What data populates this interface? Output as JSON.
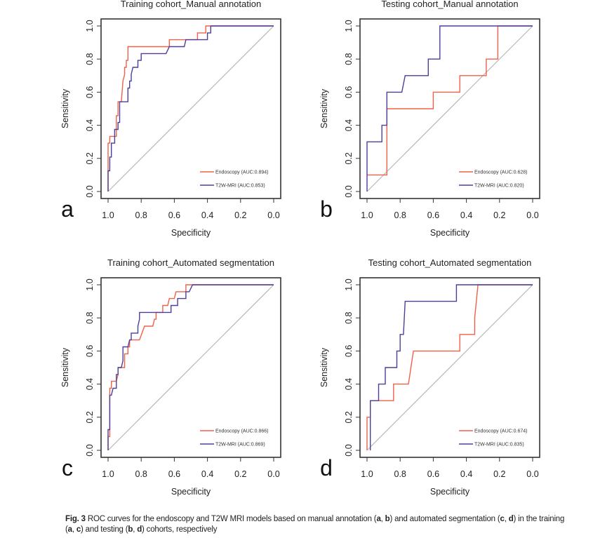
{
  "figure": {
    "caption_label": "Fig. 3",
    "caption_parts": [
      {
        "text": " ROC curves for the endoscopy and T2W MRI models based on manual annotation (",
        "bold": false
      },
      {
        "text": "a",
        "bold": true
      },
      {
        "text": ", ",
        "bold": false
      },
      {
        "text": "b",
        "bold": true
      },
      {
        "text": ") and automated segmentation (",
        "bold": false
      },
      {
        "text": "c",
        "bold": true
      },
      {
        "text": ", ",
        "bold": false
      },
      {
        "text": "d",
        "bold": true
      },
      {
        "text": ") in the training (",
        "bold": false
      },
      {
        "text": "a",
        "bold": true
      },
      {
        "text": ", ",
        "bold": false
      },
      {
        "text": "c",
        "bold": true
      },
      {
        "text": ") and testing (",
        "bold": false
      },
      {
        "text": "b",
        "bold": true
      },
      {
        "text": ", ",
        "bold": false
      },
      {
        "text": "d",
        "bold": true
      },
      {
        "text": ") cohorts, respectively",
        "bold": false
      }
    ]
  },
  "colors": {
    "endoscopy": "#f0614a",
    "t2w_mri": "#4b3f9a",
    "diagonal": "#b8b8b8",
    "frame": "#333333"
  },
  "chart_data": [
    {
      "panel_letter": "a",
      "type": "line",
      "title": "Training cohort_Manual annotation",
      "xlabel": "Specificity",
      "ylabel": "Sensitivity",
      "xlim": [
        1.0,
        0.0
      ],
      "ylim": [
        0.0,
        1.0
      ],
      "x_ticks": [
        "1.0",
        "0.8",
        "0.6",
        "0.4",
        "0.2",
        "0.0"
      ],
      "y_ticks": [
        "0.0",
        "0.2",
        "0.4",
        "0.6",
        "0.8",
        "1.0"
      ],
      "legend_position": "bottom-right",
      "grid": false,
      "series": [
        {
          "name": "Endoscopy (AUC:0.894)",
          "color_key": "endoscopy",
          "points": [
            [
              1.0,
              0.0
            ],
            [
              1.0,
              0.125
            ],
            [
              1.0,
              0.292
            ],
            [
              0.99,
              0.292
            ],
            [
              0.99,
              0.333
            ],
            [
              0.95,
              0.333
            ],
            [
              0.95,
              0.458
            ],
            [
              0.94,
              0.458
            ],
            [
              0.94,
              0.542
            ],
            [
              0.92,
              0.542
            ],
            [
              0.91,
              0.667
            ],
            [
              0.9,
              0.708
            ],
            [
              0.9,
              0.75
            ],
            [
              0.89,
              0.75
            ],
            [
              0.89,
              0.792
            ],
            [
              0.88,
              0.792
            ],
            [
              0.88,
              0.875
            ],
            [
              0.63,
              0.875
            ],
            [
              0.63,
              0.917
            ],
            [
              0.46,
              0.917
            ],
            [
              0.46,
              0.958
            ],
            [
              0.41,
              0.958
            ],
            [
              0.41,
              1.0
            ],
            [
              0.0,
              1.0
            ]
          ]
        },
        {
          "name": "T2W-MRI (AUC:0.853)",
          "color_key": "t2w_mri",
          "points": [
            [
              1.0,
              0.0
            ],
            [
              1.0,
              0.125
            ],
            [
              0.99,
              0.125
            ],
            [
              0.99,
              0.208
            ],
            [
              0.98,
              0.208
            ],
            [
              0.98,
              0.292
            ],
            [
              0.96,
              0.292
            ],
            [
              0.96,
              0.375
            ],
            [
              0.94,
              0.375
            ],
            [
              0.94,
              0.417
            ],
            [
              0.93,
              0.417
            ],
            [
              0.93,
              0.542
            ],
            [
              0.88,
              0.542
            ],
            [
              0.88,
              0.625
            ],
            [
              0.87,
              0.625
            ],
            [
              0.87,
              0.667
            ],
            [
              0.86,
              0.667
            ],
            [
              0.86,
              0.708
            ],
            [
              0.85,
              0.75
            ],
            [
              0.82,
              0.75
            ],
            [
              0.82,
              0.792
            ],
            [
              0.8,
              0.792
            ],
            [
              0.8,
              0.833
            ],
            [
              0.65,
              0.833
            ],
            [
              0.63,
              0.875
            ],
            [
              0.54,
              0.875
            ],
            [
              0.53,
              0.917
            ],
            [
              0.4,
              0.917
            ],
            [
              0.4,
              0.958
            ],
            [
              0.38,
              0.958
            ],
            [
              0.38,
              1.0
            ],
            [
              0.0,
              1.0
            ]
          ]
        }
      ]
    },
    {
      "panel_letter": "b",
      "type": "line",
      "title": "Testing cohort_Manual annotation",
      "xlabel": "Specificity",
      "ylabel": "Sensitivity",
      "xlim": [
        1.0,
        0.0
      ],
      "ylim": [
        0.0,
        1.0
      ],
      "x_ticks": [
        "1.0",
        "0.8",
        "0.6",
        "0.4",
        "0.2",
        "0.0"
      ],
      "y_ticks": [
        "0.0",
        "0.2",
        "0.4",
        "0.6",
        "0.8",
        "1.0"
      ],
      "legend_position": "bottom-right",
      "grid": false,
      "series": [
        {
          "name": "Endoscopy (AUC:0.628)",
          "color_key": "endoscopy",
          "points": [
            [
              1.0,
              0.1
            ],
            [
              0.88,
              0.1
            ],
            [
              0.88,
              0.5
            ],
            [
              0.6,
              0.5
            ],
            [
              0.6,
              0.6
            ],
            [
              0.44,
              0.6
            ],
            [
              0.44,
              0.7
            ],
            [
              0.28,
              0.7
            ],
            [
              0.28,
              0.8
            ],
            [
              0.21,
              0.8
            ],
            [
              0.21,
              1.0
            ],
            [
              0.0,
              1.0
            ]
          ]
        },
        {
          "name": "T2W-MRI (AUC:0.820)",
          "color_key": "t2w_mri",
          "points": [
            [
              1.0,
              0.0
            ],
            [
              1.0,
              0.3
            ],
            [
              0.91,
              0.3
            ],
            [
              0.91,
              0.4
            ],
            [
              0.88,
              0.4
            ],
            [
              0.88,
              0.6
            ],
            [
              0.79,
              0.6
            ],
            [
              0.77,
              0.7
            ],
            [
              0.63,
              0.7
            ],
            [
              0.63,
              0.8
            ],
            [
              0.56,
              0.8
            ],
            [
              0.56,
              1.0
            ],
            [
              0.0,
              1.0
            ]
          ]
        }
      ]
    },
    {
      "panel_letter": "c",
      "type": "line",
      "title": "Training cohort_Automated segmentation",
      "xlabel": "Specificity",
      "ylabel": "Sensitivity",
      "xlim": [
        1.0,
        0.0
      ],
      "ylim": [
        0.0,
        1.0
      ],
      "x_ticks": [
        "1.0",
        "0.8",
        "0.6",
        "0.4",
        "0.2",
        "0.0"
      ],
      "y_ticks": [
        "0.0",
        "0.2",
        "0.4",
        "0.6",
        "0.8",
        "1.0"
      ],
      "legend_position": "bottom-right",
      "grid": false,
      "series": [
        {
          "name": "Endoscopy (AUC:0.866)",
          "color_key": "endoscopy",
          "points": [
            [
              1.0,
              0.0
            ],
            [
              1.0,
              0.083
            ],
            [
              0.99,
              0.083
            ],
            [
              0.99,
              0.375
            ],
            [
              0.98,
              0.375
            ],
            [
              0.98,
              0.417
            ],
            [
              0.95,
              0.417
            ],
            [
              0.94,
              0.458
            ],
            [
              0.94,
              0.5
            ],
            [
              0.9,
              0.5
            ],
            [
              0.9,
              0.583
            ],
            [
              0.88,
              0.583
            ],
            [
              0.88,
              0.625
            ],
            [
              0.87,
              0.625
            ],
            [
              0.87,
              0.667
            ],
            [
              0.81,
              0.667
            ],
            [
              0.78,
              0.75
            ],
            [
              0.73,
              0.75
            ],
            [
              0.72,
              0.792
            ],
            [
              0.71,
              0.792
            ],
            [
              0.71,
              0.833
            ],
            [
              0.67,
              0.833
            ],
            [
              0.67,
              0.875
            ],
            [
              0.64,
              0.875
            ],
            [
              0.63,
              0.917
            ],
            [
              0.6,
              0.917
            ],
            [
              0.59,
              0.958
            ],
            [
              0.53,
              0.958
            ],
            [
              0.53,
              1.0
            ],
            [
              0.0,
              1.0
            ]
          ]
        },
        {
          "name": "T2W-MRI (AUC:0.869)",
          "color_key": "t2w_mri",
          "points": [
            [
              1.0,
              0.0
            ],
            [
              1.0,
              0.125
            ],
            [
              0.99,
              0.125
            ],
            [
              0.99,
              0.333
            ],
            [
              0.98,
              0.333
            ],
            [
              0.97,
              0.375
            ],
            [
              0.95,
              0.375
            ],
            [
              0.95,
              0.458
            ],
            [
              0.94,
              0.458
            ],
            [
              0.94,
              0.5
            ],
            [
              0.92,
              0.5
            ],
            [
              0.91,
              0.542
            ],
            [
              0.91,
              0.625
            ],
            [
              0.88,
              0.625
            ],
            [
              0.87,
              0.667
            ],
            [
              0.86,
              0.667
            ],
            [
              0.86,
              0.708
            ],
            [
              0.82,
              0.708
            ],
            [
              0.82,
              0.75
            ],
            [
              0.81,
              0.792
            ],
            [
              0.81,
              0.833
            ],
            [
              0.62,
              0.833
            ],
            [
              0.62,
              0.875
            ],
            [
              0.58,
              0.875
            ],
            [
              0.58,
              0.917
            ],
            [
              0.53,
              0.917
            ],
            [
              0.53,
              0.958
            ],
            [
              0.51,
              0.958
            ],
            [
              0.49,
              1.0
            ],
            [
              0.0,
              1.0
            ]
          ]
        }
      ]
    },
    {
      "panel_letter": "d",
      "type": "line",
      "title": "Testing cohort_Automated  segmentation",
      "xlabel": "Specificity",
      "ylabel": "Sensitivity",
      "xlim": [
        1.0,
        0.0
      ],
      "ylim": [
        0.0,
        1.0
      ],
      "x_ticks": [
        "1.0",
        "0.8",
        "0.6",
        "0.4",
        "0.2",
        "0.0"
      ],
      "y_ticks": [
        "0.0",
        "0.2",
        "0.4",
        "0.6",
        "0.8",
        "1.0"
      ],
      "legend_position": "bottom-right",
      "grid": false,
      "series": [
        {
          "name": "Endoscopy (AUC:0.674)",
          "color_key": "endoscopy",
          "points": [
            [
              1.0,
              0.0
            ],
            [
              1.0,
              0.2
            ],
            [
              0.98,
              0.2
            ],
            [
              0.98,
              0.3
            ],
            [
              0.84,
              0.3
            ],
            [
              0.84,
              0.4
            ],
            [
              0.75,
              0.4
            ],
            [
              0.72,
              0.6
            ],
            [
              0.44,
              0.6
            ],
            [
              0.44,
              0.7
            ],
            [
              0.35,
              0.7
            ],
            [
              0.35,
              0.8
            ],
            [
              0.33,
              1.0
            ],
            [
              0.0,
              1.0
            ]
          ]
        },
        {
          "name": "T2W-MRI (AUC:0.835)",
          "color_key": "t2w_mri",
          "points": [
            [
              0.98,
              0.0
            ],
            [
              0.98,
              0.3
            ],
            [
              0.93,
              0.3
            ],
            [
              0.93,
              0.4
            ],
            [
              0.89,
              0.4
            ],
            [
              0.89,
              0.5
            ],
            [
              0.82,
              0.5
            ],
            [
              0.82,
              0.6
            ],
            [
              0.8,
              0.6
            ],
            [
              0.8,
              0.7
            ],
            [
              0.78,
              0.7
            ],
            [
              0.77,
              0.9
            ],
            [
              0.46,
              0.9
            ],
            [
              0.46,
              1.0
            ],
            [
              0.0,
              1.0
            ]
          ]
        }
      ]
    }
  ]
}
